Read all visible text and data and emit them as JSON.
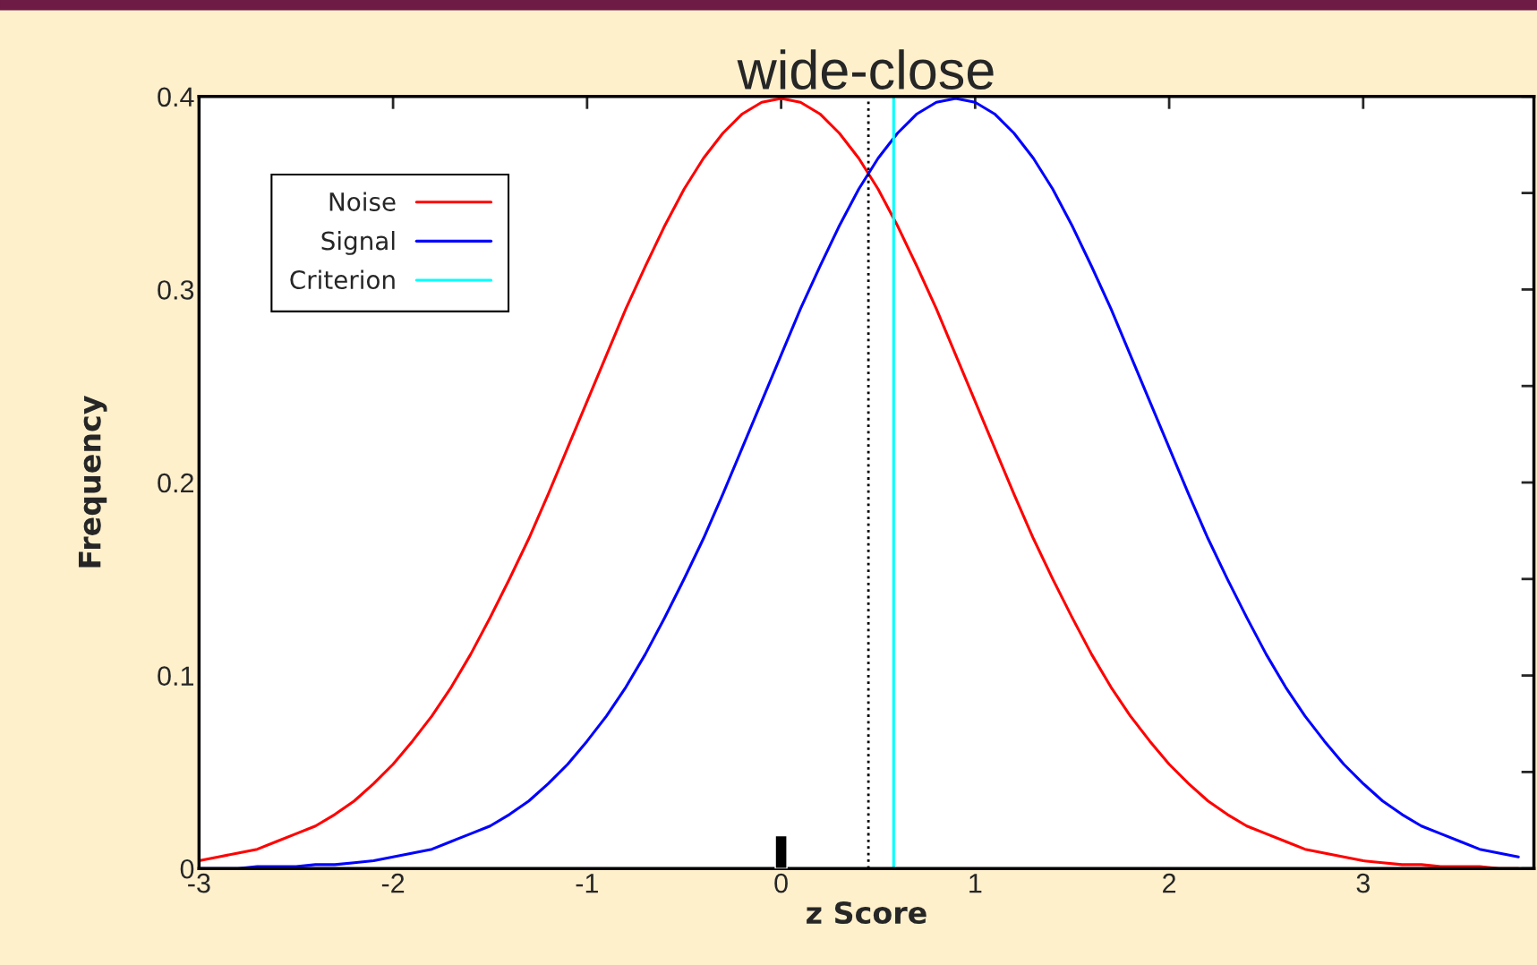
{
  "chart_data": {
    "type": "line",
    "title": "wide-close",
    "xlabel": "z Score",
    "ylabel": "Frequency",
    "xlim": [
      -3,
      3.88
    ],
    "ylim": [
      0,
      0.4
    ],
    "xticks": [
      -3,
      -2,
      -1,
      0,
      1,
      2,
      3
    ],
    "yticks": [
      0,
      {
        "value": 0.05,
        "label": null
      },
      0.1,
      {
        "value": 0.15,
        "label": null
      },
      0.2,
      {
        "value": 0.25,
        "label": null
      },
      0.3,
      {
        "value": 0.35,
        "label": null
      },
      0.4
    ],
    "grid": false,
    "legend": "top left",
    "marker": "none",
    "line_style": "solid",
    "series": [
      {
        "name": "Noise",
        "color": "#ff0000",
        "x": [
          -3.0,
          -2.9,
          -2.8,
          -2.7,
          -2.6,
          -2.5,
          -2.4,
          -2.3,
          -2.2,
          -2.1,
          -2.0,
          -1.9,
          -1.8,
          -1.7,
          -1.6,
          -1.5,
          -1.4,
          -1.3,
          -1.2,
          -1.1,
          -1.0,
          -0.9,
          -0.8,
          -0.7,
          -0.6,
          -0.5,
          -0.4,
          -0.3,
          -0.2,
          -0.1,
          0.0,
          0.1,
          0.2,
          0.3,
          0.4,
          0.5,
          0.6,
          0.7,
          0.8,
          0.9,
          1.0,
          1.1,
          1.2,
          1.3,
          1.4,
          1.5,
          1.6,
          1.7,
          1.8,
          1.9,
          2.0,
          2.1,
          2.2,
          2.3,
          2.4,
          2.5,
          2.6,
          2.7,
          2.8,
          2.9,
          3.0,
          3.1,
          3.2,
          3.3,
          3.4,
          3.5,
          3.6,
          3.7,
          3.8
        ],
        "values": [
          0.004,
          0.006,
          0.008,
          0.01,
          0.014,
          0.018,
          0.022,
          0.028,
          0.035,
          0.044,
          0.054,
          0.066,
          0.079,
          0.094,
          0.111,
          0.13,
          0.15,
          0.171,
          0.194,
          0.218,
          0.242,
          0.266,
          0.29,
          0.312,
          0.333,
          0.352,
          0.368,
          0.381,
          0.391,
          0.397,
          0.399,
          0.397,
          0.391,
          0.381,
          0.368,
          0.352,
          0.333,
          0.312,
          0.29,
          0.266,
          0.242,
          0.218,
          0.194,
          0.171,
          0.15,
          0.13,
          0.111,
          0.094,
          0.079,
          0.066,
          0.054,
          0.044,
          0.035,
          0.028,
          0.022,
          0.018,
          0.014,
          0.01,
          0.008,
          0.006,
          0.004,
          0.003,
          0.002,
          0.002,
          0.001,
          0.001,
          0.001,
          0.0,
          0.0
        ]
      },
      {
        "name": "Signal",
        "color": "#0000ff",
        "x": [
          -3.0,
          -2.9,
          -2.8,
          -2.7,
          -2.6,
          -2.5,
          -2.4,
          -2.3,
          -2.2,
          -2.1,
          -2.0,
          -1.9,
          -1.8,
          -1.7,
          -1.6,
          -1.5,
          -1.4,
          -1.3,
          -1.2,
          -1.1,
          -1.0,
          -0.9,
          -0.8,
          -0.7,
          -0.6,
          -0.5,
          -0.4,
          -0.3,
          -0.2,
          -0.1,
          0.0,
          0.1,
          0.2,
          0.3,
          0.4,
          0.5,
          0.6,
          0.7,
          0.8,
          0.9,
          1.0,
          1.1,
          1.2,
          1.3,
          1.4,
          1.5,
          1.6,
          1.7,
          1.8,
          1.9,
          2.0,
          2.1,
          2.2,
          2.3,
          2.4,
          2.5,
          2.6,
          2.7,
          2.8,
          2.9,
          3.0,
          3.1,
          3.2,
          3.3,
          3.4,
          3.5,
          3.6,
          3.7,
          3.8
        ],
        "values": [
          0.0,
          0.0,
          0.0,
          0.001,
          0.001,
          0.001,
          0.002,
          0.002,
          0.003,
          0.004,
          0.006,
          0.008,
          0.01,
          0.014,
          0.018,
          0.022,
          0.028,
          0.035,
          0.044,
          0.054,
          0.066,
          0.079,
          0.094,
          0.111,
          0.13,
          0.15,
          0.171,
          0.194,
          0.218,
          0.242,
          0.266,
          0.29,
          0.312,
          0.333,
          0.352,
          0.368,
          0.381,
          0.391,
          0.397,
          0.399,
          0.397,
          0.391,
          0.381,
          0.368,
          0.352,
          0.333,
          0.312,
          0.29,
          0.266,
          0.242,
          0.218,
          0.194,
          0.171,
          0.15,
          0.13,
          0.111,
          0.094,
          0.079,
          0.066,
          0.054,
          0.044,
          0.035,
          0.028,
          0.022,
          0.018,
          0.014,
          0.01,
          0.008,
          0.006
        ]
      },
      {
        "name": "Criterion",
        "color": "#00ffff",
        "x": [
          0.58,
          0.58
        ],
        "values": [
          0,
          0.4
        ]
      },
      {
        "type": "bar",
        "color": "#000000",
        "x": [
          0
        ],
        "values": [
          0.017
        ]
      }
    ],
    "ref_lines": [
      {
        "axis": "x",
        "value": 0.45,
        "color": "#000000",
        "line_style": "dotted"
      }
    ]
  }
}
